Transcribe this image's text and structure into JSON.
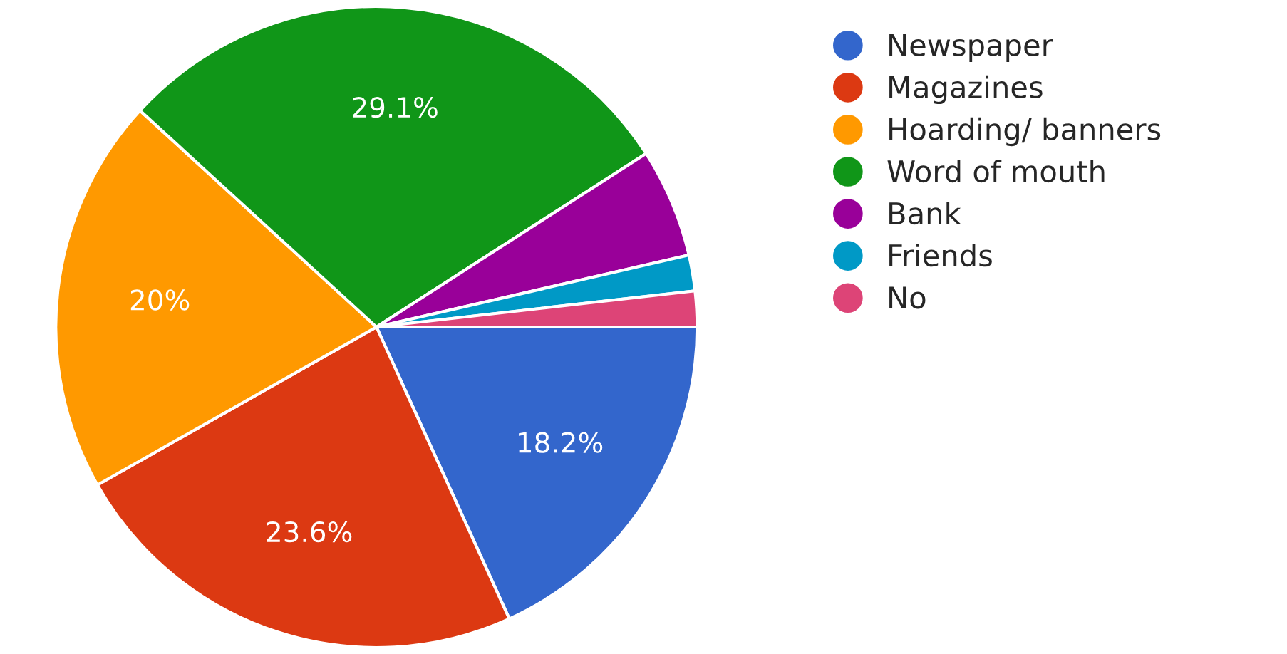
{
  "chart_data": {
    "type": "pie",
    "categories": [
      "Newspaper",
      "Magazines",
      "Hoarding/ banners",
      "Word of mouth",
      "Bank",
      "Friends",
      "No"
    ],
    "values": [
      18.2,
      23.6,
      20,
      29.1,
      5.5,
      1.8,
      1.8
    ],
    "value_labels": [
      "18.2%",
      "23.6%",
      "20%",
      "29.1%",
      null,
      null,
      null
    ],
    "colors": [
      "#3366cc",
      "#dc3912",
      "#ff9900",
      "#109618",
      "#990099",
      "#0099c6",
      "#dd4477"
    ],
    "legend": "top right"
  }
}
